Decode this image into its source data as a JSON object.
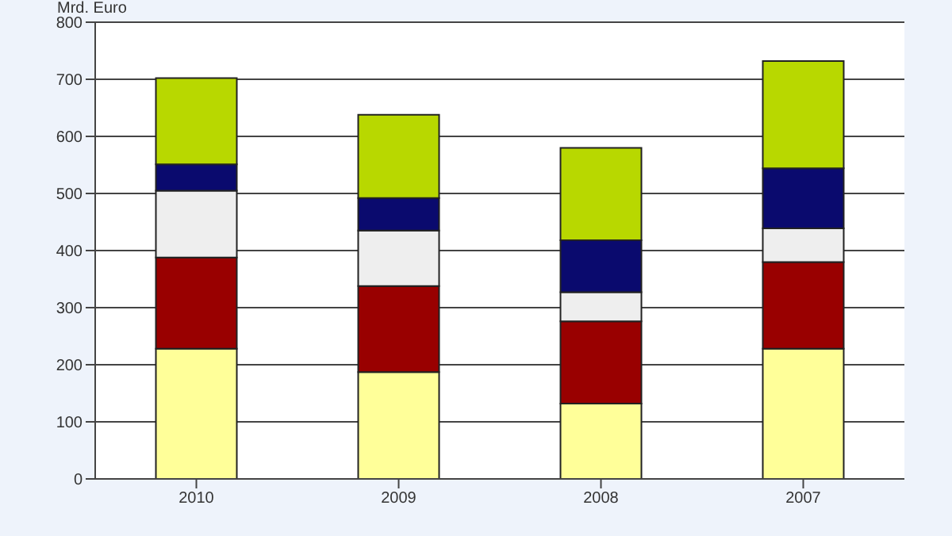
{
  "chart_data": {
    "type": "bar",
    "stacked": true,
    "ylabel": "Mrd. Euro",
    "categories": [
      "2010",
      "2009",
      "2008",
      "2007"
    ],
    "series": [
      {
        "color": "#ffff99",
        "values": [
          228,
          187,
          132,
          228
        ]
      },
      {
        "color": "#990000",
        "values": [
          160,
          151,
          144,
          152
        ]
      },
      {
        "color": "#eeeeee",
        "values": [
          117,
          97,
          51,
          59
        ]
      },
      {
        "color": "#0a0a6e",
        "values": [
          46,
          57,
          91,
          105
        ]
      },
      {
        "color": "#b8d800",
        "values": [
          151,
          146,
          162,
          188
        ]
      }
    ],
    "ylim": [
      0,
      800
    ],
    "yticks": [
      0,
      100,
      200,
      300,
      400,
      500,
      600,
      700,
      800
    ],
    "grid": "y"
  }
}
